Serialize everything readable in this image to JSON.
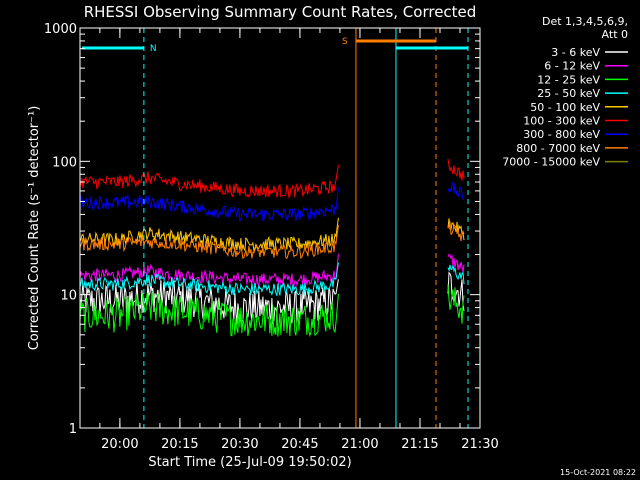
{
  "chart_data": {
    "type": "line",
    "title": "RHESSI Observing Summary Count Rates, Corrected",
    "xlabel": "Start Time (25-Jul-09 19:50:02)",
    "ylabel": "Corrected Count Rate (s⁻¹ detector⁻¹)",
    "y_scale": "log",
    "ylim": [
      1,
      1000
    ],
    "xlim": [
      "19:50:02",
      "21:30:00"
    ],
    "x_ticks": [
      "20:00",
      "20:15",
      "20:30",
      "20:45",
      "21:00",
      "21:15",
      "21:30"
    ],
    "y_ticks": [
      "1",
      "10",
      "100",
      "1000"
    ],
    "legend_title": [
      "Det 1,3,4,5,6,9,",
      "Att 0"
    ],
    "legend_position": "outside-right",
    "footer_timestamp": "15-Oct-2021 08:22",
    "series": [
      {
        "name": "3 - 6 keV",
        "color": "#ffffff",
        "x": [
          "19:50",
          "20:00",
          "20:07",
          "20:15",
          "20:30",
          "20:45",
          "20:54"
        ],
        "values": [
          9,
          9,
          10,
          9.5,
          8,
          8,
          9
        ]
      },
      {
        "name": "6 - 12 keV",
        "color": "#ff00ff",
        "x": [
          "19:50",
          "20:00",
          "20:07",
          "20:15",
          "20:30",
          "20:45",
          "20:54"
        ],
        "values": [
          14,
          14,
          15,
          14,
          13,
          13,
          14
        ]
      },
      {
        "name": "12 - 25 keV",
        "color": "#00ff00",
        "x": [
          "19:50",
          "20:00",
          "20:07",
          "20:15",
          "20:30",
          "20:45",
          "20:54"
        ],
        "values": [
          7,
          7,
          8,
          7.5,
          6.5,
          6.5,
          7
        ]
      },
      {
        "name": "25 - 50 keV",
        "color": "#00ffff",
        "x": [
          "19:50",
          "20:00",
          "20:07",
          "20:15",
          "20:30",
          "20:45",
          "20:54"
        ],
        "values": [
          12,
          12,
          13,
          12,
          11,
          11,
          12
        ]
      },
      {
        "name": "50 - 100 keV",
        "color": "#ffc800",
        "x": [
          "19:50",
          "20:00",
          "20:07",
          "20:15",
          "20:30",
          "20:45",
          "20:54"
        ],
        "values": [
          26,
          26,
          29,
          27,
          24,
          24,
          26
        ]
      },
      {
        "name": "100 - 300 keV",
        "color": "#ff0000",
        "x": [
          "19:50",
          "20:00",
          "20:07",
          "20:15",
          "20:30",
          "20:45",
          "20:54"
        ],
        "values": [
          70,
          70,
          75,
          68,
          60,
          60,
          65
        ]
      },
      {
        "name": "300 - 800 keV",
        "color": "#0000ff",
        "x": [
          "19:50",
          "20:00",
          "20:07",
          "20:15",
          "20:30",
          "20:45",
          "20:54"
        ],
        "values": [
          49,
          49,
          50,
          46,
          40,
          40,
          44
        ]
      },
      {
        "name": "800 - 7000 keV",
        "color": "#ff8000",
        "x": [
          "19:50",
          "20:00",
          "20:07",
          "20:15",
          "20:30",
          "20:45",
          "20:54"
        ],
        "values": [
          24,
          24,
          25,
          24,
          21,
          21,
          23
        ]
      },
      {
        "name": "7000 - 15000 keV",
        "color": "#808000",
        "x": [],
        "values": []
      }
    ],
    "flags": [
      {
        "label": "N",
        "color": "#00ffff"
      },
      {
        "label": "S",
        "color": "#ff8000"
      }
    ]
  }
}
